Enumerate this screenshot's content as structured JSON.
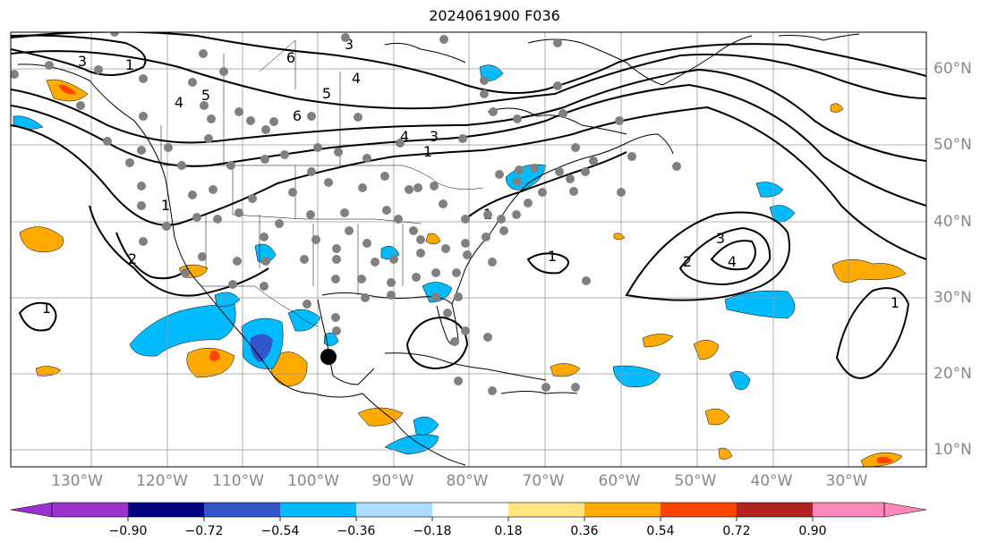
{
  "title": "2024061900 F036",
  "lon_labels": [
    "130°W",
    "120°W",
    "110°W",
    "100°W",
    "90°W",
    "80°W",
    "70°W",
    "60°W",
    "50°W",
    "40°W",
    "30°W"
  ],
  "lat_labels": [
    "60°N",
    "50°N",
    "40°N",
    "30°N",
    "20°N",
    "10°N"
  ],
  "colorbar": {
    "ticks": [
      "−0.90",
      "−0.72",
      "−0.54",
      "−0.36",
      "−0.18",
      "0.18",
      "0.36",
      "0.54",
      "0.72",
      "0.90"
    ],
    "colors": [
      "#9933cc",
      "#000080",
      "#3355cc",
      "#00bbff",
      "#aaddff",
      "#ffffff",
      "#ffe680",
      "#ffaa00",
      "#ff4400",
      "#b22222",
      "#ff88bb"
    ]
  },
  "contour_labels": [
    "1",
    "1",
    "1",
    "1",
    "2",
    "3",
    "4",
    "5",
    "6",
    "3",
    "4",
    "5",
    "6",
    "4",
    "1",
    "1",
    "3",
    "2",
    "3",
    "4",
    "1"
  ],
  "colors": {
    "warm": "#ffaa00",
    "warm_strong": "#ff4400",
    "cool": "#00bbff",
    "cool_strong": "#3355cc",
    "grid": "#999999",
    "station": "#808080"
  }
}
